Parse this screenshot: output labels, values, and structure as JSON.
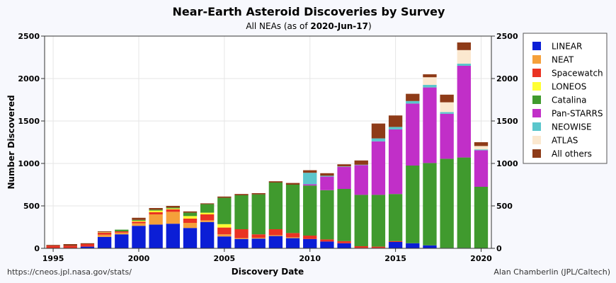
{
  "chart_data": {
    "type": "bar",
    "stacked": true,
    "title": "Near-Earth Asteroid Discoveries by Survey",
    "subtitle_prefix": "All NEAs (as of ",
    "subtitle_date": "2020-Jun-17",
    "subtitle_suffix": ")",
    "xlabel": "Discovery Date",
    "ylabel": "Number Discovered",
    "ylim": [
      0,
      2500
    ],
    "yticks": [
      0,
      500,
      1000,
      1500,
      2000,
      2500
    ],
    "xlim": [
      1994.5,
      2020.6
    ],
    "xticks": [
      1995,
      2000,
      2005,
      2010,
      2015,
      2020
    ],
    "grid": true,
    "legend_position": "right",
    "credit_left": "https://cneos.jpl.nasa.gov/stats/",
    "credit_right": "Alan Chamberlin (JPL/Caltech)",
    "years": [
      1995,
      1996,
      1997,
      1998,
      1999,
      2000,
      2001,
      2002,
      2003,
      2004,
      2005,
      2006,
      2007,
      2008,
      2009,
      2010,
      2011,
      2012,
      2013,
      2014,
      2015,
      2016,
      2017,
      2018,
      2019,
      2020
    ],
    "series": [
      {
        "name": "LINEAR",
        "color": "#0b1ed6",
        "values": [
          0,
          0,
          20,
          135,
          165,
          265,
          280,
          290,
          240,
          310,
          140,
          110,
          115,
          145,
          120,
          110,
          80,
          60,
          5,
          5,
          75,
          60,
          35,
          5,
          5,
          0
        ]
      },
      {
        "name": "NEAT",
        "color": "#f5a03a",
        "values": [
          0,
          0,
          0,
          25,
          20,
          30,
          120,
          140,
          60,
          20,
          25,
          10,
          10,
          10,
          10,
          0,
          0,
          0,
          0,
          0,
          0,
          0,
          0,
          0,
          0,
          0
        ]
      },
      {
        "name": "Spacewatch",
        "color": "#ea3323",
        "values": [
          30,
          30,
          30,
          25,
          15,
          20,
          25,
          30,
          50,
          70,
          80,
          105,
          40,
          70,
          50,
          40,
          25,
          25,
          20,
          15,
          10,
          0,
          0,
          0,
          0,
          0
        ]
      },
      {
        "name": "LONEOS",
        "color": "#ffff33",
        "values": [
          0,
          0,
          0,
          5,
          0,
          10,
          20,
          10,
          30,
          20,
          40,
          0,
          0,
          0,
          0,
          0,
          0,
          0,
          0,
          0,
          0,
          0,
          0,
          0,
          0,
          0
        ]
      },
      {
        "name": "Catalina",
        "color": "#409a2e",
        "values": [
          0,
          0,
          0,
          0,
          20,
          10,
          10,
          10,
          40,
          100,
          310,
          400,
          470,
          550,
          570,
          590,
          580,
          615,
          605,
          610,
          555,
          915,
          970,
          1050,
          1065,
          725
        ]
      },
      {
        "name": "Pan-STARRS",
        "color": "#c12fc8",
        "values": [
          0,
          0,
          0,
          0,
          0,
          0,
          0,
          0,
          0,
          0,
          0,
          0,
          0,
          0,
          0,
          15,
          160,
          260,
          350,
          630,
          760,
          730,
          890,
          530,
          1080,
          430
        ]
      },
      {
        "name": "NEOWISE",
        "color": "#5bc6cc",
        "values": [
          0,
          0,
          0,
          0,
          0,
          0,
          0,
          0,
          0,
          0,
          0,
          0,
          0,
          0,
          0,
          135,
          10,
          5,
          5,
          35,
          30,
          30,
          30,
          20,
          25,
          10
        ]
      },
      {
        "name": "ATLAS",
        "color": "#fbe8cf",
        "values": [
          0,
          0,
          0,
          0,
          0,
          0,
          0,
          0,
          0,
          0,
          0,
          0,
          0,
          0,
          0,
          0,
          0,
          0,
          0,
          0,
          0,
          0,
          90,
          115,
          160,
          40
        ]
      },
      {
        "name": "All others",
        "color": "#8e3b18",
        "values": [
          10,
          20,
          10,
          10,
          0,
          25,
          20,
          20,
          15,
          10,
          15,
          15,
          15,
          15,
          20,
          30,
          30,
          25,
          50,
          175,
          135,
          85,
          35,
          90,
          90,
          45
        ]
      }
    ]
  }
}
